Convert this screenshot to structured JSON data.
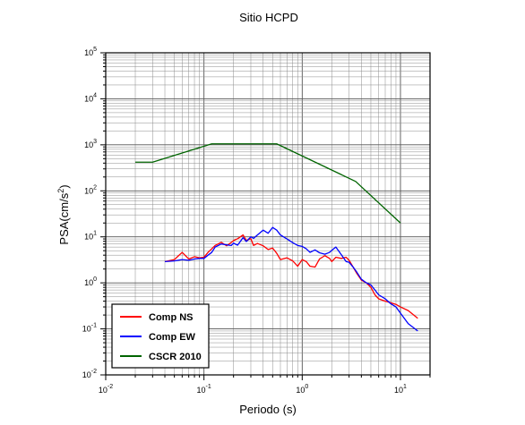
{
  "chart_data": {
    "type": "line",
    "title": "Sitio HCPD",
    "xlabel": "Periodo (s)",
    "ylabel": {
      "base": "PSA(cm/s",
      "exp": "2",
      "close": ")"
    },
    "xscale": "log",
    "yscale": "log",
    "xlim": [
      0.01,
      20
    ],
    "ylim": [
      0.01,
      100000
    ],
    "grid": true,
    "legend_position": "bottom-left",
    "xticks": [
      {
        "base": "10",
        "exp": "-2",
        "value": 0.01
      },
      {
        "base": "10",
        "exp": "-1",
        "value": 0.1
      },
      {
        "base": "10",
        "exp": "0",
        "value": 1
      },
      {
        "base": "10",
        "exp": "1",
        "value": 10
      }
    ],
    "yticks": [
      {
        "base": "10",
        "exp": "-2",
        "value": 0.01
      },
      {
        "base": "10",
        "exp": "-1",
        "value": 0.1
      },
      {
        "base": "10",
        "exp": "0",
        "value": 1
      },
      {
        "base": "10",
        "exp": "1",
        "value": 10
      },
      {
        "base": "10",
        "exp": "2",
        "value": 100
      },
      {
        "base": "10",
        "exp": "3",
        "value": 1000
      },
      {
        "base": "10",
        "exp": "4",
        "value": 10000
      },
      {
        "base": "10",
        "exp": "5",
        "value": 100000
      }
    ],
    "series": [
      {
        "name": "Comp NS",
        "color": "#ff0000",
        "x": [
          0.04,
          0.05,
          0.06,
          0.07,
          0.08,
          0.09,
          0.1,
          0.11,
          0.12,
          0.13,
          0.15,
          0.17,
          0.19,
          0.2,
          0.22,
          0.25,
          0.27,
          0.3,
          0.32,
          0.35,
          0.4,
          0.45,
          0.5,
          0.55,
          0.6,
          0.7,
          0.8,
          0.9,
          1.0,
          1.1,
          1.2,
          1.35,
          1.5,
          1.7,
          1.9,
          2.0,
          2.2,
          2.5,
          2.8,
          3.0,
          3.3,
          3.6,
          4.0,
          4.5,
          5.0,
          5.5,
          6.0,
          7.0,
          8.0,
          9.0,
          10.0,
          12.0,
          15.0
        ],
        "y": [
          2.9,
          3.2,
          4.6,
          3.3,
          3.7,
          3.5,
          3.6,
          4.6,
          5.5,
          6.5,
          7.6,
          6.4,
          7.6,
          8.3,
          9.1,
          11.0,
          8.3,
          9.1,
          6.5,
          7.2,
          6.4,
          5.3,
          5.7,
          4.4,
          3.2,
          3.5,
          3.0,
          2.3,
          3.2,
          2.9,
          2.3,
          2.2,
          3.3,
          3.9,
          3.4,
          2.9,
          3.6,
          3.4,
          3.6,
          3.1,
          2.2,
          1.6,
          1.15,
          1.0,
          0.8,
          0.55,
          0.45,
          0.4,
          0.37,
          0.34,
          0.3,
          0.25,
          0.17
        ]
      },
      {
        "name": "Comp EW",
        "color": "#0000ff",
        "x": [
          0.04,
          0.05,
          0.06,
          0.07,
          0.08,
          0.09,
          0.1,
          0.11,
          0.12,
          0.13,
          0.15,
          0.17,
          0.19,
          0.2,
          0.22,
          0.25,
          0.27,
          0.3,
          0.32,
          0.35,
          0.4,
          0.45,
          0.5,
          0.55,
          0.6,
          0.7,
          0.8,
          0.9,
          1.0,
          1.1,
          1.2,
          1.35,
          1.5,
          1.7,
          1.9,
          2.0,
          2.2,
          2.5,
          2.8,
          3.0,
          3.3,
          3.6,
          4.0,
          4.5,
          5.0,
          5.5,
          6.0,
          7.0,
          8.0,
          9.0,
          10.0,
          12.0,
          15.0
        ],
        "y": [
          2.9,
          3.0,
          3.2,
          3.1,
          3.3,
          3.4,
          3.4,
          4.0,
          4.6,
          6.0,
          7.0,
          6.7,
          6.5,
          7.3,
          6.6,
          9.6,
          7.9,
          10.0,
          9.3,
          11.0,
          14.0,
          12.0,
          16.0,
          14.0,
          11.0,
          9.0,
          7.5,
          6.5,
          6.2,
          5.5,
          4.6,
          5.2,
          4.5,
          4.2,
          4.6,
          5.1,
          6.0,
          4.1,
          2.9,
          2.8,
          2.2,
          1.7,
          1.2,
          1.0,
          0.9,
          0.7,
          0.55,
          0.45,
          0.35,
          0.3,
          0.22,
          0.13,
          0.09
        ]
      },
      {
        "name": "CSCR 2010",
        "color": "#006400",
        "x": [
          0.02,
          0.03,
          0.12,
          0.55,
          3.5,
          10.0
        ],
        "y": [
          420,
          420,
          1050,
          1050,
          160,
          20
        ]
      }
    ]
  }
}
